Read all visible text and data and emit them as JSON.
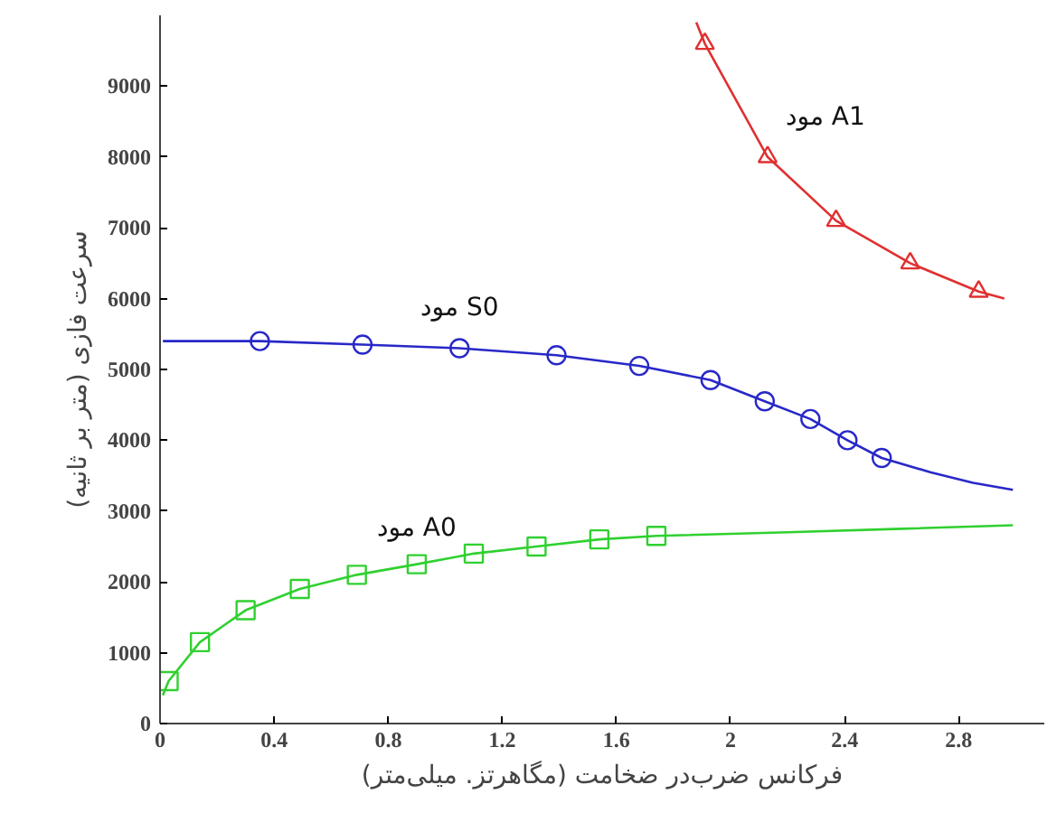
{
  "chart_data": {
    "type": "line",
    "xlabel": "فرکانس ضرب‌در ضخامت (مگاهرتز. میلی‌متر)",
    "ylabel": "سرعت فازی (متر بر ثانیه)",
    "xlim": [
      0,
      3.1
    ],
    "ylim": [
      0,
      10000
    ],
    "xticks": [
      0,
      0.4,
      0.8,
      1.2,
      1.6,
      2,
      2.4,
      2.8
    ],
    "yticks": [
      0,
      1000,
      2000,
      3000,
      4000,
      5000,
      6000,
      7000,
      8000,
      9000
    ],
    "grid": false,
    "series": [
      {
        "name": "مود A1",
        "marker": "none",
        "color": "#e03030",
        "x": [
          1.88,
          1.91,
          2.13,
          2.37,
          2.63,
          2.87,
          2.96
        ],
        "values": [
          9900,
          9600,
          8000,
          7100,
          6500,
          6100,
          6000
        ]
      },
      {
        "type": "scatter",
        "marker": "triangle",
        "color": "#e03030",
        "x": [
          1.91,
          2.13,
          2.37,
          2.63,
          2.87
        ],
        "values": [
          9600,
          8000,
          7100,
          6500,
          6100
        ]
      },
      {
        "name": "مود S0",
        "marker": "none",
        "color": "#2828c8",
        "x": [
          0.01,
          0.35,
          0.71,
          1.05,
          1.39,
          1.68,
          1.93,
          2.12,
          2.28,
          2.41,
          2.53,
          2.7,
          2.85,
          2.99
        ],
        "values": [
          5400,
          5400,
          5350,
          5300,
          5200,
          5050,
          4850,
          4550,
          4300,
          4000,
          3750,
          3550,
          3400,
          3300
        ]
      },
      {
        "type": "scatter",
        "marker": "circle",
        "color": "#2828c8",
        "x": [
          0.35,
          0.71,
          1.05,
          1.39,
          1.68,
          1.93,
          2.12,
          2.28,
          2.41,
          2.53
        ],
        "values": [
          5400,
          5350,
          5300,
          5200,
          5050,
          4850,
          4550,
          4300,
          4000,
          3750
        ]
      },
      {
        "name": "مود A0",
        "marker": "none",
        "color": "#30d030",
        "x": [
          0.01,
          0.03,
          0.14,
          0.3,
          0.49,
          0.69,
          0.9,
          1.1,
          1.32,
          1.54,
          1.74,
          2.2,
          2.6,
          2.99
        ],
        "values": [
          400,
          600,
          1150,
          1600,
          1900,
          2100,
          2250,
          2400,
          2500,
          2600,
          2650,
          2700,
          2750,
          2800
        ]
      },
      {
        "type": "scatter",
        "marker": "square",
        "color": "#30d030",
        "x": [
          0.03,
          0.14,
          0.3,
          0.49,
          0.69,
          0.9,
          1.1,
          1.32,
          1.54,
          1.74
        ],
        "values": [
          600,
          1150,
          1600,
          1900,
          2100,
          2250,
          2400,
          2500,
          2600,
          2650
        ]
      }
    ]
  }
}
